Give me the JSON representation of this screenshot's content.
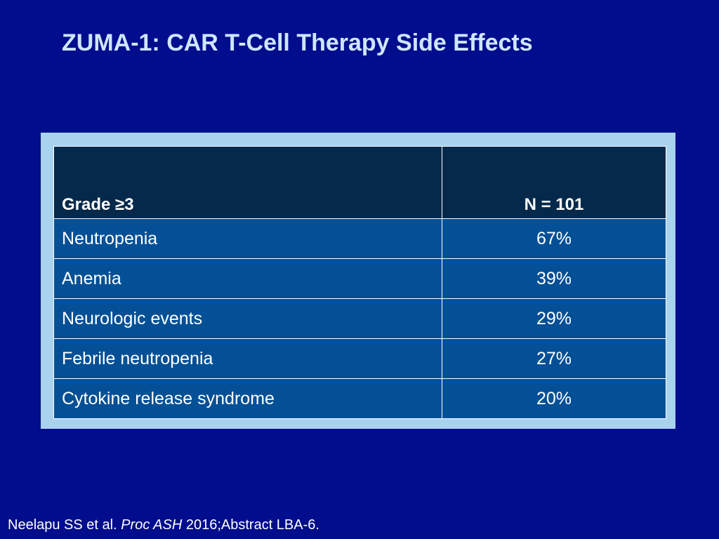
{
  "slide": {
    "title": "ZUMA-1: CAR T-Cell Therapy Side Effects"
  },
  "table": {
    "headers": [
      "Grade ≥3",
      "N = 101"
    ],
    "rows": [
      {
        "event": "Neutropenia",
        "value": "67%"
      },
      {
        "event": "Anemia",
        "value": "39%"
      },
      {
        "event": "Neurologic events",
        "value": "29%"
      },
      {
        "event": "Febrile neutropenia",
        "value": "27%"
      },
      {
        "event": "Cytokine release syndrome",
        "value": "20%"
      }
    ]
  },
  "citation": {
    "authors": "Neelapu SS et al.",
    "journal": "Proc ASH",
    "details": "2016;Abstract LBA-6."
  },
  "colors": {
    "background": "#000d8c",
    "title": "#cfe6ff",
    "frame": "#a9d2ee",
    "header_fill": "#05294a",
    "row_fill": "#035096"
  }
}
